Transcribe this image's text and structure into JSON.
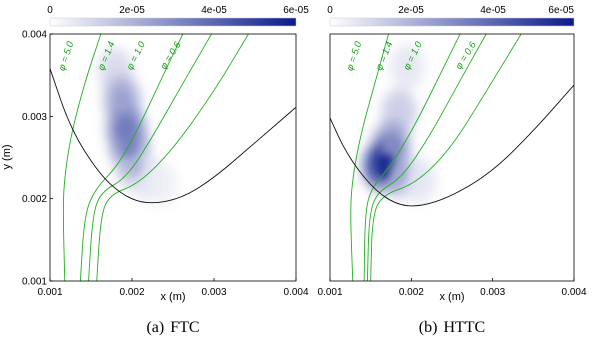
{
  "chart_data": [
    {
      "type": "heatmap",
      "panel_label": "(a)",
      "title": "FTC",
      "xlabel": "x (m)",
      "ylabel": "y (m)",
      "xlim": [
        0.001,
        0.004
      ],
      "ylim": [
        0.001,
        0.004
      ],
      "xticks": [
        "0.001",
        "0.002",
        "0.003",
        "0.004"
      ],
      "yticks": [
        "0.001",
        "0.002",
        "0.003",
        "0.004"
      ],
      "colorbar": {
        "min": 0,
        "max": 6e-05,
        "ticks": [
          "0",
          "2e-05",
          "4e-05",
          "6e-05"
        ],
        "colors": [
          "#ffffff",
          "#0a1a8c"
        ]
      },
      "hotspot": [
        {
          "x": 0.0018,
          "y": 0.00355,
          "value": 1.2e-05
        },
        {
          "x": 0.00188,
          "y": 0.0032,
          "value": 2.5e-05
        },
        {
          "x": 0.00193,
          "y": 0.00285,
          "value": 3.5e-05
        },
        {
          "x": 0.00197,
          "y": 0.00262,
          "value": 3.3e-05
        },
        {
          "x": 0.00203,
          "y": 0.0024,
          "value": 2e-05
        },
        {
          "x": 0.00218,
          "y": 0.00225,
          "value": 9e-06
        },
        {
          "x": 0.00235,
          "y": 0.00218,
          "value": 5e-06
        }
      ],
      "black_curve": [
        [
          0.001,
          0.00358
        ],
        [
          0.00125,
          0.00285
        ],
        [
          0.0016,
          0.0023
        ],
        [
          0.0019,
          0.00203
        ],
        [
          0.0022,
          0.00193
        ],
        [
          0.0026,
          0.002
        ],
        [
          0.003,
          0.00225
        ],
        [
          0.0035,
          0.00268
        ],
        [
          0.004,
          0.00311
        ]
      ],
      "phi_contours": [
        {
          "label": "φ = 5.0",
          "points": [
            [
              0.00118,
              0.001
            ],
            [
              0.00116,
              0.0018
            ],
            [
              0.00117,
              0.0022
            ],
            [
              0.00125,
              0.00275
            ],
            [
              0.00142,
              0.0034
            ],
            [
              0.00162,
              0.004
            ]
          ]
        },
        {
          "label": "φ = 1.4",
          "points": [
            [
              0.00137,
              0.001
            ],
            [
              0.00142,
              0.0018
            ],
            [
              0.00155,
              0.00212
            ],
            [
              0.00183,
              0.0024
            ],
            [
              0.0021,
              0.0029
            ],
            [
              0.00238,
              0.0035
            ],
            [
              0.00262,
              0.004
            ]
          ]
        },
        {
          "label": "φ = 1.0",
          "points": [
            [
              0.00147,
              0.001
            ],
            [
              0.00152,
              0.0018
            ],
            [
              0.00162,
              0.00208
            ],
            [
              0.00193,
              0.00225
            ],
            [
              0.00225,
              0.00275
            ],
            [
              0.00262,
              0.0034
            ],
            [
              0.00297,
              0.004
            ]
          ]
        },
        {
          "label": "φ = 0.6",
          "points": [
            [
              0.00157,
              0.001
            ],
            [
              0.00162,
              0.0018
            ],
            [
              0.00173,
              0.00205
            ],
            [
              0.00208,
              0.00218
            ],
            [
              0.0025,
              0.0026
            ],
            [
              0.003,
              0.0033
            ],
            [
              0.00342,
              0.004
            ]
          ]
        }
      ]
    },
    {
      "type": "heatmap",
      "panel_label": "(b)",
      "title": "HTTC",
      "xlabel": "x (m)",
      "ylabel": "",
      "xlim": [
        0.001,
        0.004
      ],
      "ylim": [
        0.001,
        0.004
      ],
      "xticks": [
        "0.001",
        "0.002",
        "0.003",
        "0.004"
      ],
      "yticks": [],
      "colorbar": {
        "min": 0,
        "max": 6e-05,
        "ticks": [
          "0",
          "2e-05",
          "4e-05",
          "6e-05"
        ],
        "colors": [
          "#ffffff",
          "#0a1a8c"
        ]
      },
      "hotspot": [
        {
          "x": 0.00195,
          "y": 0.0036,
          "value": 8e-06
        },
        {
          "x": 0.00185,
          "y": 0.00305,
          "value": 1.6e-05
        },
        {
          "x": 0.00175,
          "y": 0.00265,
          "value": 3e-05
        },
        {
          "x": 0.00168,
          "y": 0.0024,
          "value": 5.8e-05
        },
        {
          "x": 0.00185,
          "y": 0.0023,
          "value": 2.2e-05
        },
        {
          "x": 0.0021,
          "y": 0.00222,
          "value": 8e-06
        }
      ],
      "black_curve": [
        [
          0.001,
          0.00298
        ],
        [
          0.0012,
          0.00255
        ],
        [
          0.0015,
          0.00215
        ],
        [
          0.0018,
          0.00193
        ],
        [
          0.0021,
          0.0019
        ],
        [
          0.0025,
          0.00203
        ],
        [
          0.003,
          0.00233
        ],
        [
          0.0035,
          0.00282
        ],
        [
          0.004,
          0.00338
        ]
      ],
      "phi_contours": [
        {
          "label": "φ = 5.0",
          "points": [
            [
              0.00128,
              0.001
            ],
            [
              0.00125,
              0.0018
            ],
            [
              0.00127,
              0.0022
            ],
            [
              0.00137,
              0.00275
            ],
            [
              0.00155,
              0.0034
            ],
            [
              0.00172,
              0.004
            ]
          ]
        },
        {
          "label": "φ = 1.4",
          "points": [
            [
              0.00142,
              0.001
            ],
            [
              0.00143,
              0.0018
            ],
            [
              0.0015,
              0.00212
            ],
            [
              0.00175,
              0.0024
            ],
            [
              0.00205,
              0.0029
            ],
            [
              0.00235,
              0.0035
            ],
            [
              0.0026,
              0.004
            ]
          ]
        },
        {
          "label": "φ = 1.0",
          "points": [
            [
              0.00146,
              0.001
            ],
            [
              0.00148,
              0.0018
            ],
            [
              0.00158,
              0.00208
            ],
            [
              0.00188,
              0.00225
            ],
            [
              0.00222,
              0.00275
            ],
            [
              0.00258,
              0.0034
            ],
            [
              0.00292,
              0.004
            ]
          ]
        },
        {
          "label": "φ = 0.6",
          "points": [
            [
              0.0015,
              0.001
            ],
            [
              0.00152,
              0.0018
            ],
            [
              0.00165,
              0.00205
            ],
            [
              0.00205,
              0.00218
            ],
            [
              0.00248,
              0.0026
            ],
            [
              0.00292,
              0.0033
            ],
            [
              0.00335,
              0.004
            ]
          ]
        }
      ]
    }
  ]
}
